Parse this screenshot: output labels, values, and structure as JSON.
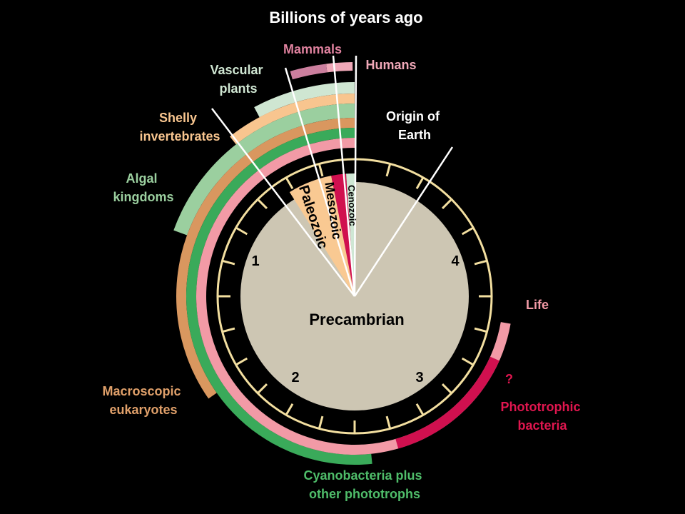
{
  "title": "Billions of years ago",
  "eras": {
    "precambrian": "Precambrian",
    "paleozoic": "Paleozoic",
    "mesozoic": "Mesozoic",
    "cenozoic": "Cenozoic"
  },
  "clock_numbers": [
    "1",
    "2",
    "3",
    "4"
  ],
  "events": {
    "humans": "Humans",
    "mammals": "Mammals",
    "vascular_plants": [
      "Vascular",
      "plants"
    ],
    "shelly_invertebrates": [
      "Shelly",
      "invertebrates"
    ],
    "algal_kingdoms": [
      "Algal",
      "kingdoms"
    ],
    "macroscopic_eukaryotes": [
      "Macroscopic",
      "eukaryotes"
    ],
    "cyanobacteria": [
      "Cyanobacteria plus",
      "other phototrophs"
    ],
    "phototrophic_bacteria": [
      "?",
      "Phototrophic",
      "bacteria"
    ],
    "life": "Life",
    "origin_of_earth": [
      "Origin of",
      "Earth"
    ]
  },
  "colors": {
    "background": "#000000",
    "dial": "#cdc6b3",
    "rim": "#f3dfa0",
    "paleozoic": "#f9c992",
    "mesozoic": "#d0104f",
    "cenozoic": "#cfe7d4",
    "mammals": "#cc7f9e",
    "humans": "#f0a8b8",
    "vascular_plants": "#cfe6d2",
    "shelly_invertebrates": "#f8c58f",
    "algal_kingdoms": "#9bcf9f",
    "macroscopic_eukaryotes": "#d9975f",
    "cyanobacteria": "#3aaa5a",
    "life": "#f29aa6",
    "phototrophic_bacteria": "#d0104f",
    "white": "#ffffff"
  }
}
